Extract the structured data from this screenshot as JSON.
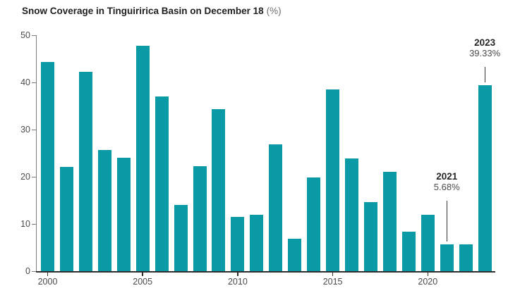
{
  "title": {
    "main": "Snow Coverage in Tinguiririca Basin on December 18",
    "unit": "(%)"
  },
  "chart_data": {
    "type": "bar",
    "title": "Snow Coverage in Tinguiririca Basin on December 18 (%)",
    "xlabel": "",
    "ylabel": "",
    "categories": [
      2000,
      2001,
      2002,
      2003,
      2004,
      2005,
      2006,
      2007,
      2008,
      2009,
      2010,
      2011,
      2012,
      2013,
      2014,
      2015,
      2016,
      2017,
      2018,
      2019,
      2020,
      2021,
      2022,
      2023
    ],
    "values": [
      44.3,
      22.1,
      42.3,
      25.6,
      24.0,
      47.8,
      37.0,
      14.1,
      22.3,
      34.4,
      11.5,
      11.9,
      26.8,
      6.9,
      19.9,
      38.5,
      23.9,
      14.6,
      21.0,
      8.4,
      12.0,
      5.68,
      5.6,
      39.33
    ],
    "ylim": [
      0,
      50
    ],
    "yticks": [
      0,
      10,
      20,
      30,
      40,
      50
    ],
    "xticks": [
      2000,
      2005,
      2010,
      2015,
      2020
    ],
    "grid": false,
    "legend": false,
    "bar_color": "#0a9aa6",
    "annotations": [
      {
        "year": 2021,
        "title": "2021",
        "value_text": "5.68%"
      },
      {
        "year": 2023,
        "title": "2023",
        "value_text": "39.33%"
      }
    ]
  }
}
